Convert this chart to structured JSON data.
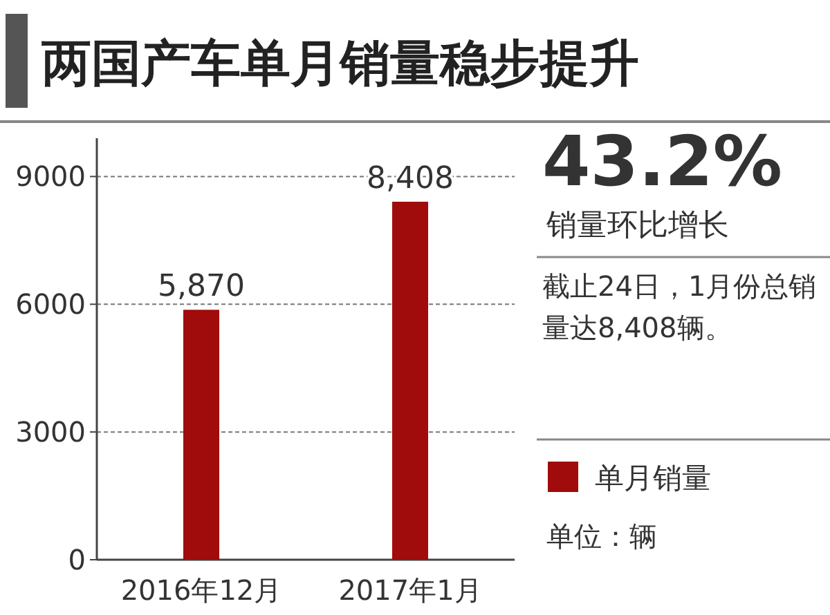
{
  "chart_data": {
    "type": "bar",
    "title": "两国产车单月销量稳步提升",
    "categories": [
      "2016年12月",
      "2017年1月"
    ],
    "series": [
      {
        "name": "单月销量",
        "color": "#a00b0b",
        "values": [
          5870,
          8408
        ],
        "value_labels": [
          "5,870",
          "8,408"
        ]
      }
    ],
    "ylim": [
      0,
      9900
    ],
    "yticks": [
      0,
      3000,
      6000,
      9000
    ],
    "grid": "y",
    "legend": "right",
    "annotations": [
      "43.2%",
      "销量环比增长",
      "截止24日，1月份总销量达8,408辆。",
      "单位：辆"
    ]
  }
}
